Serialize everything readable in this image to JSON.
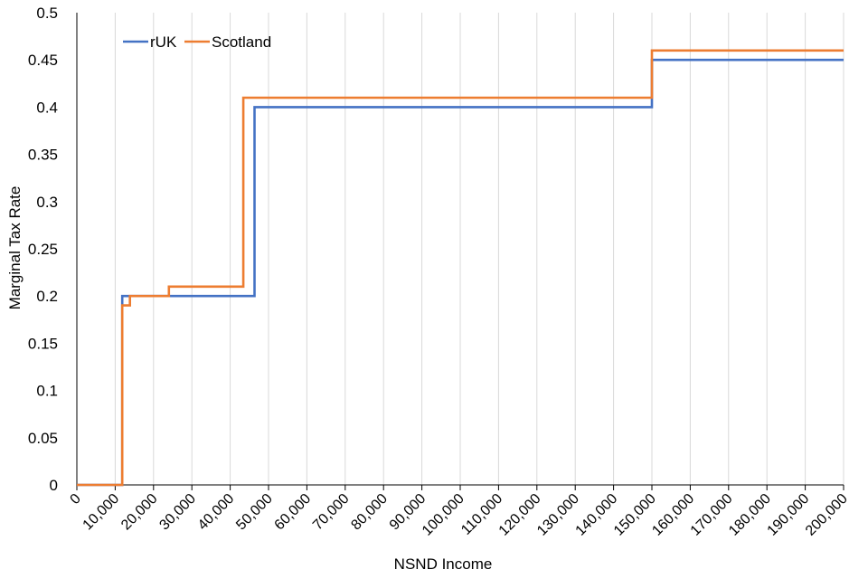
{
  "chart_data": {
    "type": "line",
    "step": true,
    "title": "",
    "xlabel": "NSND Income",
    "ylabel": "Marginal Tax Rate",
    "xlim": [
      0,
      200000
    ],
    "ylim": [
      0,
      0.5
    ],
    "x_ticks": [
      0,
      10000,
      20000,
      30000,
      40000,
      50000,
      60000,
      70000,
      80000,
      90000,
      100000,
      110000,
      120000,
      130000,
      140000,
      150000,
      160000,
      170000,
      180000,
      190000,
      200000
    ],
    "x_tick_labels": [
      "0",
      "10,000",
      "20,000",
      "30,000",
      "40,000",
      "50,000",
      "60,000",
      "70,000",
      "80,000",
      "90,000",
      "100,000",
      "110,000",
      "120,000",
      "130,000",
      "140,000",
      "150,000",
      "160,000",
      "170,000",
      "180,000",
      "190,000",
      "200,000"
    ],
    "y_ticks": [
      0,
      0.05,
      0.1,
      0.15,
      0.2,
      0.25,
      0.3,
      0.35,
      0.4,
      0.45,
      0.5
    ],
    "y_tick_labels": [
      "0",
      "0.05",
      "0.1",
      "0.15",
      "0.2",
      "0.25",
      "0.3",
      "0.35",
      "0.4",
      "0.45",
      "0.5"
    ],
    "grid": "vertical",
    "legend": {
      "position": "top-left",
      "entries": [
        "rUK",
        "Scotland"
      ]
    },
    "series": [
      {
        "name": "rUK",
        "color": "#4472C4",
        "points": [
          [
            0,
            0
          ],
          [
            11850,
            0
          ],
          [
            11850,
            0.2
          ],
          [
            46350,
            0.2
          ],
          [
            46350,
            0.4
          ],
          [
            150000,
            0.4
          ],
          [
            150000,
            0.45
          ],
          [
            200000,
            0.45
          ]
        ]
      },
      {
        "name": "Scotland",
        "color": "#ED7D31",
        "points": [
          [
            0,
            0
          ],
          [
            11850,
            0
          ],
          [
            11850,
            0.19
          ],
          [
            13850,
            0.19
          ],
          [
            13850,
            0.2
          ],
          [
            24000,
            0.2
          ],
          [
            24000,
            0.21
          ],
          [
            43430,
            0.21
          ],
          [
            43430,
            0.41
          ],
          [
            150000,
            0.41
          ],
          [
            150000,
            0.46
          ],
          [
            200000,
            0.46
          ]
        ]
      }
    ]
  }
}
